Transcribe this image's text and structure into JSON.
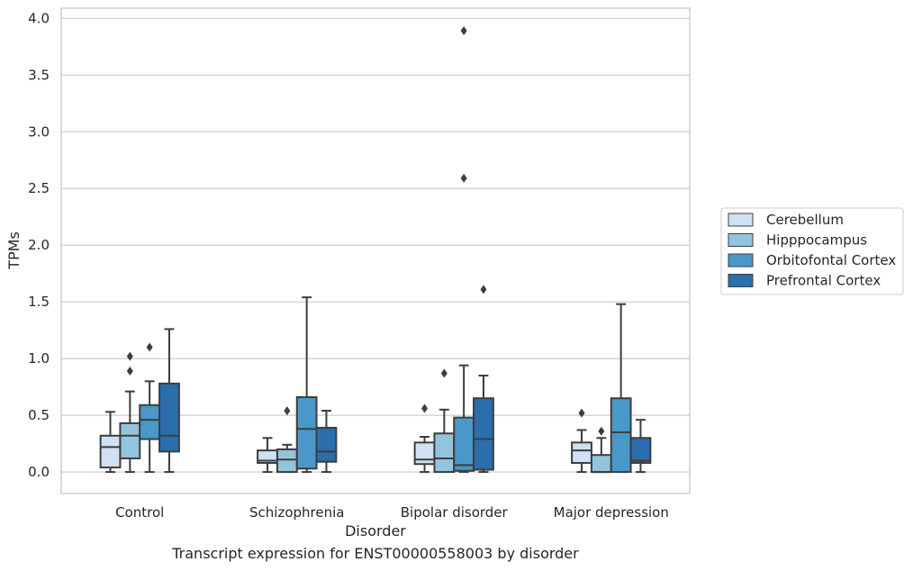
{
  "chart_data": {
    "type": "box",
    "caption": "Transcript expression for ENST00000558003 by disorder",
    "xlabel": "Disorder",
    "ylabel": "TPMs",
    "ylim": [
      -0.19,
      4.09
    ],
    "yticks": [
      "0.0",
      "0.5",
      "1.0",
      "1.5",
      "2.0",
      "2.5",
      "3.0",
      "3.5",
      "4.0"
    ],
    "grid": "horizontal",
    "legend_position": "right",
    "categories": [
      "Control",
      "Schizophrenia",
      "Bipolar disorder",
      "Major depression"
    ],
    "series": [
      {
        "name": "Cerebellum",
        "color": "#cfe1f2",
        "boxes": [
          {
            "whisker_low": 0.0,
            "q1": 0.04,
            "median": 0.22,
            "q3": 0.32,
            "whisker_high": 0.53,
            "outliers": []
          },
          {
            "whisker_low": 0.0,
            "q1": 0.08,
            "median": 0.1,
            "q3": 0.19,
            "whisker_high": 0.3,
            "outliers": []
          },
          {
            "whisker_low": 0.0,
            "q1": 0.07,
            "median": 0.11,
            "q3": 0.26,
            "whisker_high": 0.31,
            "outliers": [
              0.56
            ]
          },
          {
            "whisker_low": 0.0,
            "q1": 0.08,
            "median": 0.19,
            "q3": 0.26,
            "whisker_high": 0.37,
            "outliers": [
              0.52
            ]
          }
        ]
      },
      {
        "name": "Hipppocampus",
        "color": "#93c4de",
        "boxes": [
          {
            "whisker_low": 0.0,
            "q1": 0.12,
            "median": 0.32,
            "q3": 0.43,
            "whisker_high": 0.71,
            "outliers": [
              0.89,
              1.02
            ]
          },
          {
            "whisker_low": 0.0,
            "q1": 0.0,
            "median": 0.11,
            "q3": 0.2,
            "whisker_high": 0.24,
            "outliers": [
              0.54
            ]
          },
          {
            "whisker_low": 0.0,
            "q1": 0.0,
            "median": 0.12,
            "q3": 0.34,
            "whisker_high": 0.55,
            "outliers": [
              0.87
            ]
          },
          {
            "whisker_low": 0.0,
            "q1": 0.0,
            "median": 0.0,
            "q3": 0.15,
            "whisker_high": 0.3,
            "outliers": [
              0.36
            ]
          }
        ]
      },
      {
        "name": "Orbitofontal Cortex",
        "color": "#4a98c9",
        "boxes": [
          {
            "whisker_low": 0.0,
            "q1": 0.29,
            "median": 0.46,
            "q3": 0.59,
            "whisker_high": 0.8,
            "outliers": [
              1.1
            ]
          },
          {
            "whisker_low": 0.0,
            "q1": 0.03,
            "median": 0.38,
            "q3": 0.66,
            "whisker_high": 1.54,
            "outliers": []
          },
          {
            "whisker_low": 0.0,
            "q1": 0.01,
            "median": 0.06,
            "q3": 0.48,
            "whisker_high": 0.94,
            "outliers": [
              2.59,
              3.89
            ]
          },
          {
            "whisker_low": 0.0,
            "q1": 0.0,
            "median": 0.35,
            "q3": 0.65,
            "whisker_high": 1.48,
            "outliers": []
          }
        ]
      },
      {
        "name": "Prefrontal Cortex",
        "color": "#2a6ead",
        "boxes": [
          {
            "whisker_low": 0.0,
            "q1": 0.18,
            "median": 0.32,
            "q3": 0.78,
            "whisker_high": 1.26,
            "outliers": []
          },
          {
            "whisker_low": 0.0,
            "q1": 0.09,
            "median": 0.18,
            "q3": 0.39,
            "whisker_high": 0.54,
            "outliers": []
          },
          {
            "whisker_low": 0.0,
            "q1": 0.02,
            "median": 0.29,
            "q3": 0.65,
            "whisker_high": 0.85,
            "outliers": [
              1.61
            ]
          },
          {
            "whisker_low": 0.0,
            "q1": 0.08,
            "median": 0.1,
            "q3": 0.3,
            "whisker_high": 0.46,
            "outliers": []
          }
        ]
      }
    ]
  }
}
